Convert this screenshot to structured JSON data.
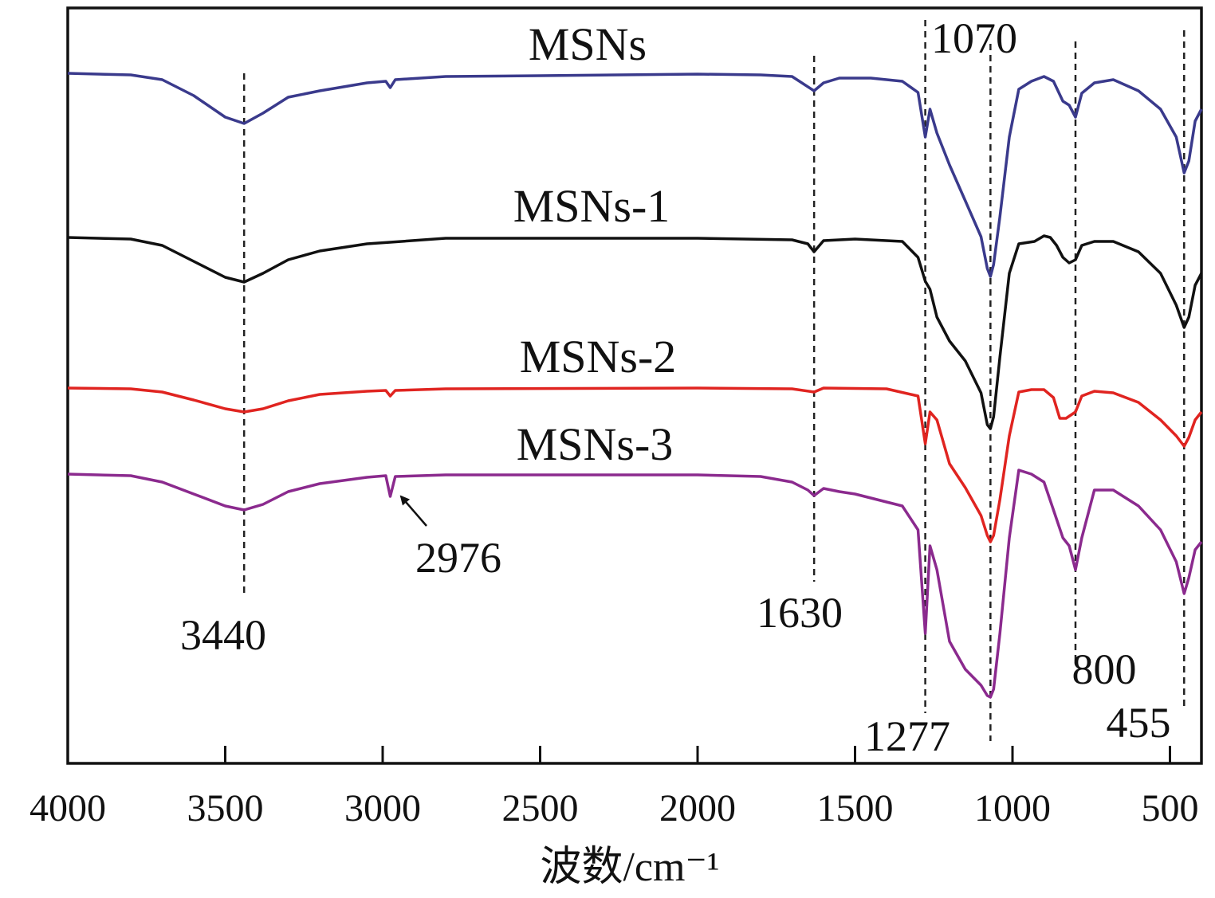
{
  "chart_data": {
    "type": "line",
    "title": "",
    "xlabel": "波数/cm⁻¹",
    "ylabel": "",
    "xlim": [
      4000,
      400
    ],
    "x_ticks": [
      4000,
      3500,
      3000,
      2500,
      2000,
      1500,
      1000,
      500
    ],
    "grid": false,
    "legend": "inline labels above each trace",
    "series": [
      {
        "name": "MSNs",
        "color": "#3a3a8c",
        "points": [
          [
            4000,
            0
          ],
          [
            3800,
            -2
          ],
          [
            3700,
            -8
          ],
          [
            3600,
            -28
          ],
          [
            3500,
            -55
          ],
          [
            3440,
            -63
          ],
          [
            3380,
            -50
          ],
          [
            3300,
            -30
          ],
          [
            3200,
            -22
          ],
          [
            3050,
            -12
          ],
          [
            2990,
            -10
          ],
          [
            2976,
            -18
          ],
          [
            2960,
            -8
          ],
          [
            2800,
            -4
          ],
          [
            2500,
            -3
          ],
          [
            2000,
            -1
          ],
          [
            1800,
            -2
          ],
          [
            1700,
            -4
          ],
          [
            1630,
            -22
          ],
          [
            1600,
            -12
          ],
          [
            1550,
            -6
          ],
          [
            1450,
            -6
          ],
          [
            1350,
            -10
          ],
          [
            1300,
            -24
          ],
          [
            1277,
            -80
          ],
          [
            1262,
            -45
          ],
          [
            1240,
            -75
          ],
          [
            1200,
            -115
          ],
          [
            1150,
            -160
          ],
          [
            1100,
            -205
          ],
          [
            1080,
            -245
          ],
          [
            1070,
            -255
          ],
          [
            1060,
            -240
          ],
          [
            1040,
            -180
          ],
          [
            1010,
            -80
          ],
          [
            980,
            -20
          ],
          [
            940,
            -10
          ],
          [
            900,
            -4
          ],
          [
            870,
            -10
          ],
          [
            840,
            -35
          ],
          [
            820,
            -40
          ],
          [
            800,
            -55
          ],
          [
            780,
            -25
          ],
          [
            740,
            -12
          ],
          [
            680,
            -8
          ],
          [
            600,
            -22
          ],
          [
            530,
            -45
          ],
          [
            480,
            -80
          ],
          [
            455,
            -125
          ],
          [
            440,
            -110
          ],
          [
            420,
            -60
          ],
          [
            400,
            -45
          ]
        ]
      },
      {
        "name": "MSNs-1",
        "color": "#111111",
        "points": [
          [
            4000,
            0
          ],
          [
            3800,
            -2
          ],
          [
            3700,
            -10
          ],
          [
            3600,
            -30
          ],
          [
            3500,
            -50
          ],
          [
            3440,
            -56
          ],
          [
            3380,
            -45
          ],
          [
            3300,
            -28
          ],
          [
            3200,
            -17
          ],
          [
            3050,
            -8
          ],
          [
            2976,
            -6
          ],
          [
            2800,
            -1
          ],
          [
            2500,
            -1
          ],
          [
            2000,
            -1
          ],
          [
            1700,
            -3
          ],
          [
            1650,
            -8
          ],
          [
            1630,
            -18
          ],
          [
            1600,
            -4
          ],
          [
            1500,
            -2
          ],
          [
            1350,
            -5
          ],
          [
            1300,
            -25
          ],
          [
            1277,
            -55
          ],
          [
            1262,
            -65
          ],
          [
            1240,
            -100
          ],
          [
            1200,
            -130
          ],
          [
            1150,
            -155
          ],
          [
            1100,
            -195
          ],
          [
            1080,
            -235
          ],
          [
            1070,
            -240
          ],
          [
            1060,
            -225
          ],
          [
            1040,
            -150
          ],
          [
            1010,
            -45
          ],
          [
            980,
            -8
          ],
          [
            930,
            -5
          ],
          [
            900,
            2
          ],
          [
            880,
            0
          ],
          [
            860,
            -10
          ],
          [
            840,
            -25
          ],
          [
            820,
            -32
          ],
          [
            800,
            -28
          ],
          [
            780,
            -10
          ],
          [
            740,
            -5
          ],
          [
            680,
            -5
          ],
          [
            600,
            -18
          ],
          [
            530,
            -45
          ],
          [
            480,
            -85
          ],
          [
            455,
            -113
          ],
          [
            440,
            -100
          ],
          [
            420,
            -60
          ],
          [
            400,
            -45
          ]
        ]
      },
      {
        "name": "MSNs-2",
        "color": "#e02420",
        "points": [
          [
            4000,
            0
          ],
          [
            3800,
            -1
          ],
          [
            3700,
            -5
          ],
          [
            3600,
            -15
          ],
          [
            3500,
            -26
          ],
          [
            3440,
            -30
          ],
          [
            3380,
            -26
          ],
          [
            3300,
            -16
          ],
          [
            3200,
            -8
          ],
          [
            3050,
            -4
          ],
          [
            2990,
            -3
          ],
          [
            2976,
            -10
          ],
          [
            2960,
            -3
          ],
          [
            2800,
            -1
          ],
          [
            2000,
            0
          ],
          [
            1700,
            -1
          ],
          [
            1630,
            -5
          ],
          [
            1600,
            0
          ],
          [
            1400,
            -1
          ],
          [
            1300,
            -10
          ],
          [
            1277,
            -70
          ],
          [
            1262,
            -30
          ],
          [
            1240,
            -40
          ],
          [
            1200,
            -95
          ],
          [
            1150,
            -125
          ],
          [
            1100,
            -160
          ],
          [
            1080,
            -185
          ],
          [
            1070,
            -193
          ],
          [
            1060,
            -185
          ],
          [
            1040,
            -140
          ],
          [
            1010,
            -60
          ],
          [
            980,
            -5
          ],
          [
            940,
            -2
          ],
          [
            900,
            -2
          ],
          [
            870,
            -12
          ],
          [
            850,
            -38
          ],
          [
            830,
            -38
          ],
          [
            800,
            -30
          ],
          [
            780,
            -10
          ],
          [
            740,
            -4
          ],
          [
            680,
            -6
          ],
          [
            600,
            -18
          ],
          [
            530,
            -40
          ],
          [
            480,
            -60
          ],
          [
            455,
            -73
          ],
          [
            440,
            -62
          ],
          [
            420,
            -40
          ],
          [
            400,
            -30
          ]
        ]
      },
      {
        "name": "MSNs-3",
        "color": "#8b2a8e",
        "points": [
          [
            4000,
            0
          ],
          [
            3800,
            -2
          ],
          [
            3700,
            -10
          ],
          [
            3600,
            -25
          ],
          [
            3500,
            -40
          ],
          [
            3440,
            -45
          ],
          [
            3380,
            -38
          ],
          [
            3300,
            -22
          ],
          [
            3200,
            -12
          ],
          [
            3050,
            -4
          ],
          [
            2990,
            -2
          ],
          [
            2976,
            -28
          ],
          [
            2960,
            -3
          ],
          [
            2800,
            -1
          ],
          [
            2500,
            -1
          ],
          [
            2000,
            -1
          ],
          [
            1800,
            -3
          ],
          [
            1700,
            -10
          ],
          [
            1650,
            -20
          ],
          [
            1630,
            -27
          ],
          [
            1600,
            -18
          ],
          [
            1550,
            -22
          ],
          [
            1500,
            -25
          ],
          [
            1450,
            -30
          ],
          [
            1400,
            -35
          ],
          [
            1350,
            -40
          ],
          [
            1300,
            -70
          ],
          [
            1277,
            -200
          ],
          [
            1262,
            -90
          ],
          [
            1240,
            -120
          ],
          [
            1200,
            -210
          ],
          [
            1150,
            -245
          ],
          [
            1100,
            -265
          ],
          [
            1080,
            -278
          ],
          [
            1070,
            -280
          ],
          [
            1060,
            -270
          ],
          [
            1040,
            -200
          ],
          [
            1010,
            -80
          ],
          [
            980,
            5
          ],
          [
            940,
            0
          ],
          [
            900,
            -10
          ],
          [
            870,
            -45
          ],
          [
            840,
            -80
          ],
          [
            820,
            -90
          ],
          [
            800,
            -120
          ],
          [
            780,
            -80
          ],
          [
            740,
            -20
          ],
          [
            680,
            -20
          ],
          [
            600,
            -40
          ],
          [
            530,
            -70
          ],
          [
            480,
            -110
          ],
          [
            455,
            -150
          ],
          [
            440,
            -130
          ],
          [
            420,
            -95
          ],
          [
            400,
            -85
          ]
        ]
      }
    ],
    "peak_markers": [
      3440,
      1630,
      1277,
      1070,
      800,
      455
    ],
    "annotations": [
      {
        "text": "3440"
      },
      {
        "text": "2976",
        "arrow_to": 2976
      },
      {
        "text": "1630"
      },
      {
        "text": "1277"
      },
      {
        "text": "1070"
      },
      {
        "text": "800"
      },
      {
        "text": "455"
      }
    ]
  }
}
